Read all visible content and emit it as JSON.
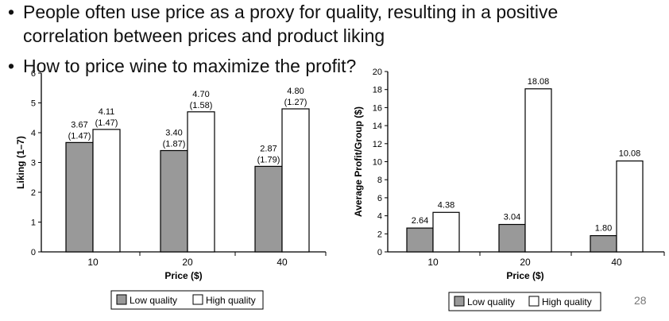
{
  "slide": {
    "bullets": [
      {
        "line1": "People often use price as a proxy for quality, resulting in a positive",
        "line2": "correlation between prices and product liking"
      },
      {
        "line1": "How to price wine to maximize the profit?"
      }
    ],
    "page_number": "28"
  },
  "colors": {
    "low": "#999999",
    "high": "#ffffff",
    "stroke": "#000000"
  },
  "chart_data": [
    {
      "type": "bar",
      "categories": [
        "10",
        "20",
        "40"
      ],
      "xlabel": "Price ($)",
      "ylabel": "Liking (1–7)",
      "ylim": [
        0,
        6
      ],
      "yticks": [
        "0",
        "1",
        "2",
        "3",
        "4",
        "5",
        "6"
      ],
      "series": [
        {
          "name": "Low quality",
          "values": [
            3.67,
            3.4,
            2.87
          ],
          "sd_labels": [
            "(1.47)",
            "(1.87)",
            "(1.79)"
          ],
          "value_labels": [
            "3.67",
            "3.40",
            "2.87"
          ]
        },
        {
          "name": "High quality",
          "values": [
            4.11,
            4.7,
            4.8
          ],
          "sd_labels": [
            "(1.47)",
            "(1.58)",
            "(1.27)"
          ],
          "value_labels": [
            "4.11",
            "4.70",
            "4.80"
          ]
        }
      ],
      "legend": "bottom-center"
    },
    {
      "type": "bar",
      "categories": [
        "10",
        "20",
        "40"
      ],
      "xlabel": "Price ($)",
      "ylabel": "Average Profit/Group ($)",
      "ylim": [
        0,
        20
      ],
      "yticks": [
        "0",
        "2",
        "4",
        "6",
        "8",
        "10",
        "12",
        "14",
        "16",
        "18",
        "20"
      ],
      "series": [
        {
          "name": "Low quality",
          "values": [
            2.64,
            3.04,
            1.8
          ],
          "value_labels": [
            "2.64",
            "3.04",
            "1.80"
          ]
        },
        {
          "name": "High quality",
          "values": [
            4.38,
            18.08,
            10.08
          ],
          "value_labels": [
            "4.38",
            "18.08",
            "10.08"
          ]
        }
      ],
      "legend": "bottom-center"
    }
  ]
}
